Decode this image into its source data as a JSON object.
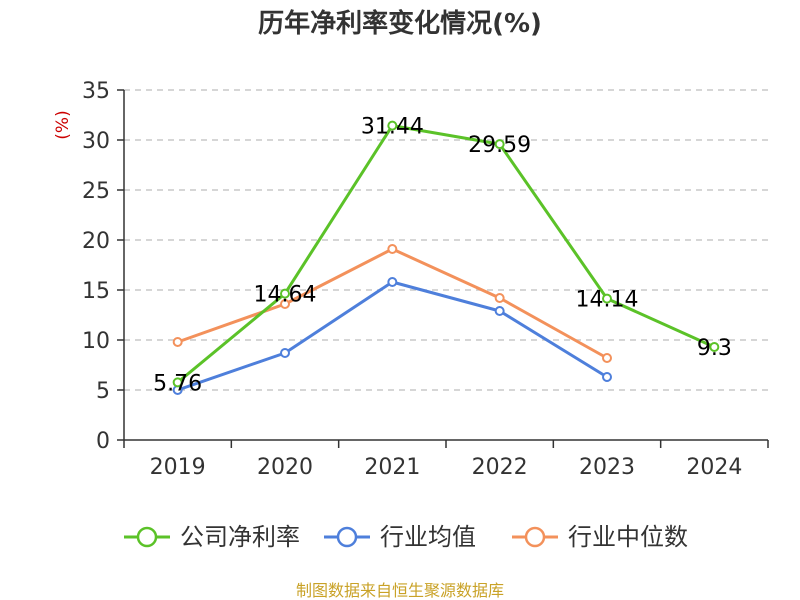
{
  "chart_data": {
    "type": "line",
    "title": "历年净利率变化情况(%)",
    "ylabel": "(%)",
    "xlabel": "",
    "categories": [
      "2019",
      "2020",
      "2021",
      "2022",
      "2023",
      "2024"
    ],
    "ylim": [
      0,
      35
    ],
    "yticks": [
      0,
      5,
      10,
      15,
      20,
      25,
      30,
      35
    ],
    "grid": true,
    "grid_style": "dashed",
    "legend_position": "bottom",
    "series": [
      {
        "name": "公司净利率",
        "color": "#5bc228",
        "values": [
          5.76,
          14.64,
          31.44,
          29.59,
          14.14,
          9.3
        ],
        "labels": [
          "5.76",
          "14.64",
          "31.44",
          "29.59",
          "14.14",
          "9.3"
        ]
      },
      {
        "name": "行业均值",
        "color": "#4e7fdb",
        "values": [
          5.0,
          8.7,
          15.8,
          12.9,
          6.3,
          null
        ],
        "labels": null
      },
      {
        "name": "行业中位数",
        "color": "#f3915b",
        "values": [
          9.8,
          13.6,
          19.1,
          14.2,
          8.2,
          null
        ],
        "labels": null
      }
    ]
  },
  "footer": {
    "source": "制图数据来自恒生聚源数据库"
  }
}
